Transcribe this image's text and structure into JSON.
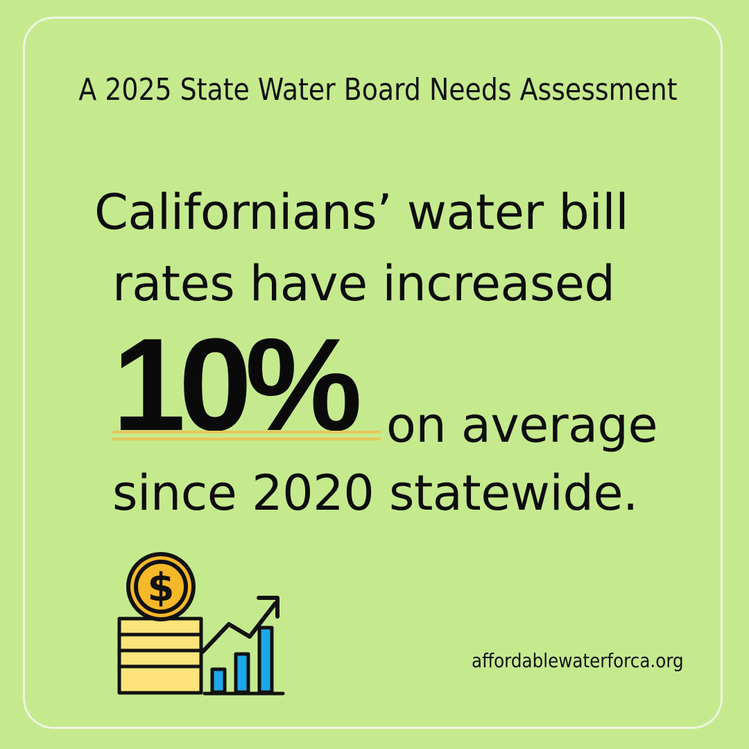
{
  "header": {
    "subtitle": "A 2025 State Water Board Needs Assessment"
  },
  "headline": {
    "line1": "Californians’ water bill",
    "line2": "rates have increased",
    "stat": "10%",
    "after_stat": "on average",
    "line4": "since 2020 statewide."
  },
  "footer": {
    "url": "affordablewaterforca.org"
  },
  "icon": {
    "name": "coin-stack-growth-chart-icon",
    "symbol": "$"
  },
  "colors": {
    "background": "#c5ea8e",
    "frame": "#eef5e2",
    "underline": "#e8c75a",
    "coin": "#f5b829",
    "stack": "#fde37a",
    "bars": "#1ea7e8",
    "text": "#0d0d0d"
  }
}
